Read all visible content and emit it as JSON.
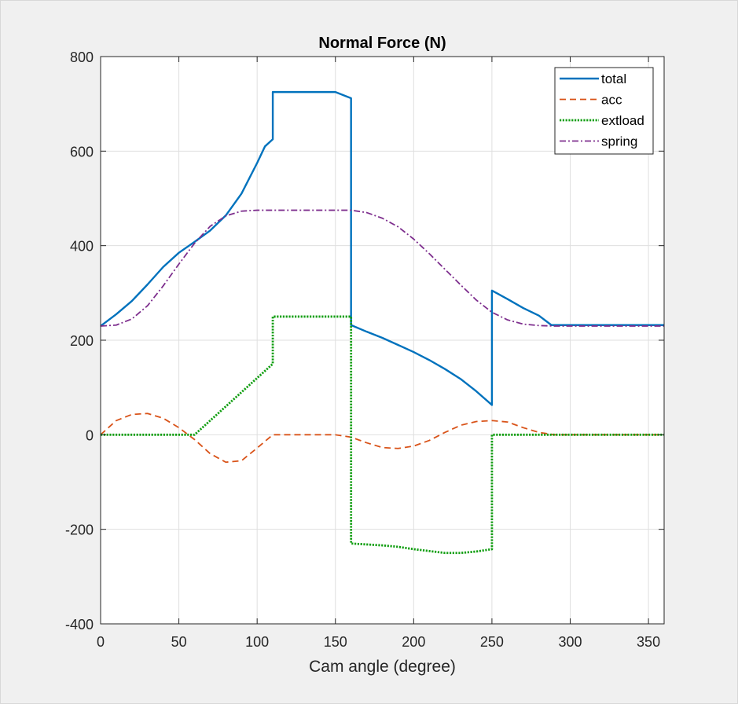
{
  "chart_data": {
    "type": "line",
    "title": "Normal Force (N)",
    "xlabel": "Cam angle (degree)",
    "ylabel": "",
    "xlim": [
      0,
      360
    ],
    "ylim": [
      -400,
      800
    ],
    "xticks": [
      0,
      50,
      100,
      150,
      200,
      250,
      300,
      350
    ],
    "yticks": [
      -400,
      -200,
      0,
      200,
      400,
      600,
      800
    ],
    "grid": true,
    "legend_position": "top-right",
    "series": [
      {
        "name": "total",
        "color": "#0072bd",
        "style": "solid",
        "x": [
          0,
          10,
          20,
          30,
          40,
          50,
          60,
          70,
          80,
          90,
          100,
          105,
          110,
          110,
          120,
          130,
          140,
          150,
          160,
          160,
          170,
          180,
          190,
          200,
          210,
          220,
          230,
          240,
          250,
          250,
          260,
          270,
          280,
          288,
          300,
          320,
          340,
          360
        ],
        "y": [
          230,
          255,
          283,
          318,
          355,
          385,
          408,
          432,
          464,
          510,
          575,
          610,
          625,
          725,
          725,
          725,
          725,
          725,
          712,
          232,
          218,
          205,
          190,
          175,
          158,
          139,
          118,
          92,
          63,
          305,
          287,
          268,
          252,
          232,
          232,
          232,
          232,
          232
        ]
      },
      {
        "name": "acc",
        "color": "#d95319",
        "style": "dashed",
        "x": [
          0,
          10,
          20,
          30,
          40,
          50,
          60,
          70,
          80,
          90,
          100,
          110,
          120,
          130,
          140,
          150,
          160,
          170,
          180,
          190,
          200,
          210,
          220,
          230,
          240,
          250,
          260,
          270,
          280,
          290,
          300,
          320,
          340,
          360
        ],
        "y": [
          0,
          30,
          43,
          45,
          35,
          15,
          -10,
          -40,
          -58,
          -55,
          -28,
          0,
          0,
          0,
          0,
          0,
          -5,
          -17,
          -27,
          -29,
          -24,
          -12,
          5,
          20,
          28,
          30,
          27,
          15,
          5,
          0,
          0,
          0,
          0,
          0
        ]
      },
      {
        "name": "extload",
        "color": "#119e11",
        "style": "dotted",
        "x": [
          0,
          60,
          110,
          110,
          160,
          160,
          170,
          180,
          190,
          200,
          210,
          220,
          230,
          240,
          250,
          250,
          280,
          300,
          320,
          340,
          360
        ],
        "y": [
          0,
          0,
          150,
          250,
          250,
          -230,
          -232,
          -234,
          -237,
          -242,
          -246,
          -250,
          -250,
          -247,
          -242,
          0,
          0,
          0,
          0,
          0,
          0
        ]
      },
      {
        "name": "spring",
        "color": "#7e2f8e",
        "style": "dashdot",
        "x": [
          0,
          10,
          20,
          30,
          40,
          50,
          60,
          70,
          80,
          90,
          100,
          110,
          120,
          130,
          140,
          150,
          160,
          170,
          180,
          190,
          200,
          210,
          220,
          230,
          240,
          250,
          260,
          270,
          280,
          290,
          300,
          320,
          340,
          360
        ],
        "y": [
          230,
          232,
          245,
          273,
          315,
          361,
          405,
          441,
          463,
          473,
          475,
          475,
          475,
          475,
          475,
          475,
          475,
          470,
          458,
          440,
          414,
          383,
          350,
          317,
          285,
          259,
          243,
          234,
          231,
          230,
          230,
          230,
          230,
          230
        ]
      }
    ]
  }
}
